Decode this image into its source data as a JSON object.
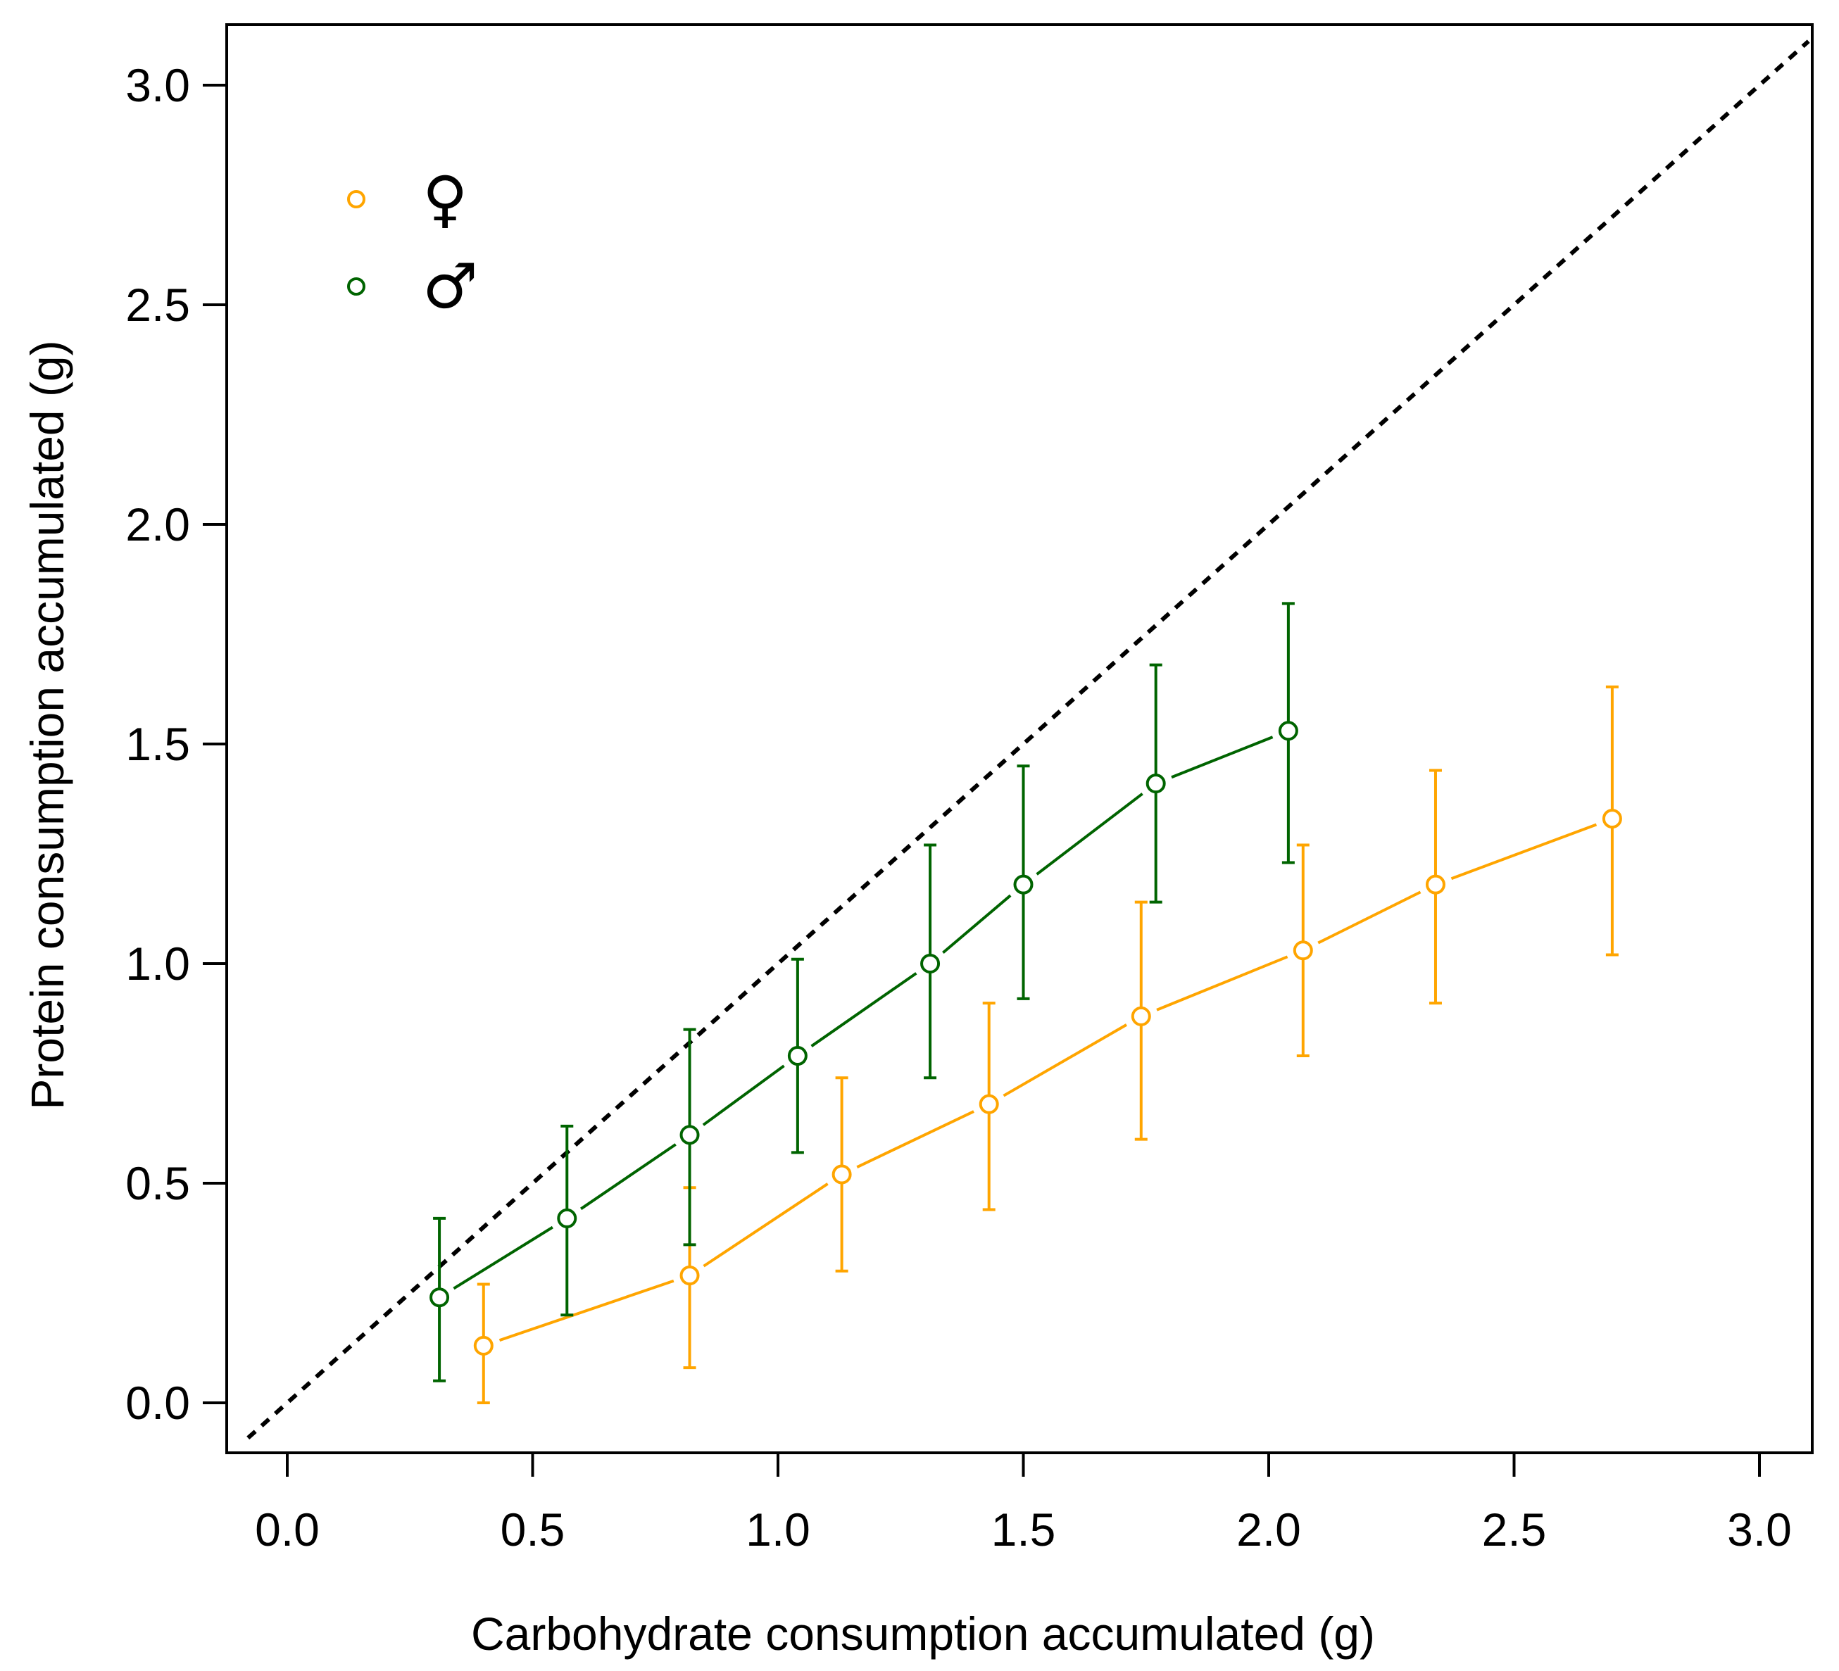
{
  "chart_data": {
    "type": "scatter",
    "title": "",
    "xlabel": "Carbohydrate consumption accumulated (g)",
    "ylabel": "Protein consumption accumulated (g)",
    "xlim": [
      -0.12,
      3.1
    ],
    "ylim": [
      -0.12,
      3.12
    ],
    "x_ticks": [
      "0.0",
      "0.5",
      "1.0",
      "1.5",
      "2.0",
      "2.5",
      "3.0"
    ],
    "y_ticks": [
      "0.0",
      "0.5",
      "1.0",
      "1.5",
      "2.0",
      "2.5",
      "3.0"
    ],
    "grid": false,
    "legend_position": "top-left",
    "reference_line": {
      "style": "dashed",
      "color": "#000000",
      "x": [
        -0.08,
        3.1
      ],
      "y": [
        -0.08,
        3.1
      ]
    },
    "series": [
      {
        "name": "♀",
        "color": "#FFA500",
        "x": [
          0.4,
          0.82,
          1.13,
          1.43,
          1.74,
          2.07,
          2.34,
          2.7
        ],
        "y": [
          0.13,
          0.29,
          0.52,
          0.68,
          0.88,
          1.03,
          1.18,
          1.33
        ],
        "y_low": [
          0.0,
          0.08,
          0.3,
          0.44,
          0.6,
          0.79,
          0.91,
          1.02
        ],
        "y_high": [
          0.27,
          0.49,
          0.74,
          0.91,
          1.14,
          1.27,
          1.44,
          1.63
        ]
      },
      {
        "name": "♂",
        "color": "#006400",
        "x": [
          0.31,
          0.57,
          0.82,
          1.04,
          1.31,
          1.5,
          1.77,
          2.04
        ],
        "y": [
          0.24,
          0.42,
          0.61,
          0.79,
          1.0,
          1.18,
          1.41,
          1.53
        ],
        "y_low": [
          0.05,
          0.2,
          0.36,
          0.57,
          0.74,
          0.92,
          1.14,
          1.23
        ],
        "y_high": [
          0.42,
          0.63,
          0.85,
          1.01,
          1.27,
          1.45,
          1.68,
          1.82
        ]
      }
    ]
  }
}
